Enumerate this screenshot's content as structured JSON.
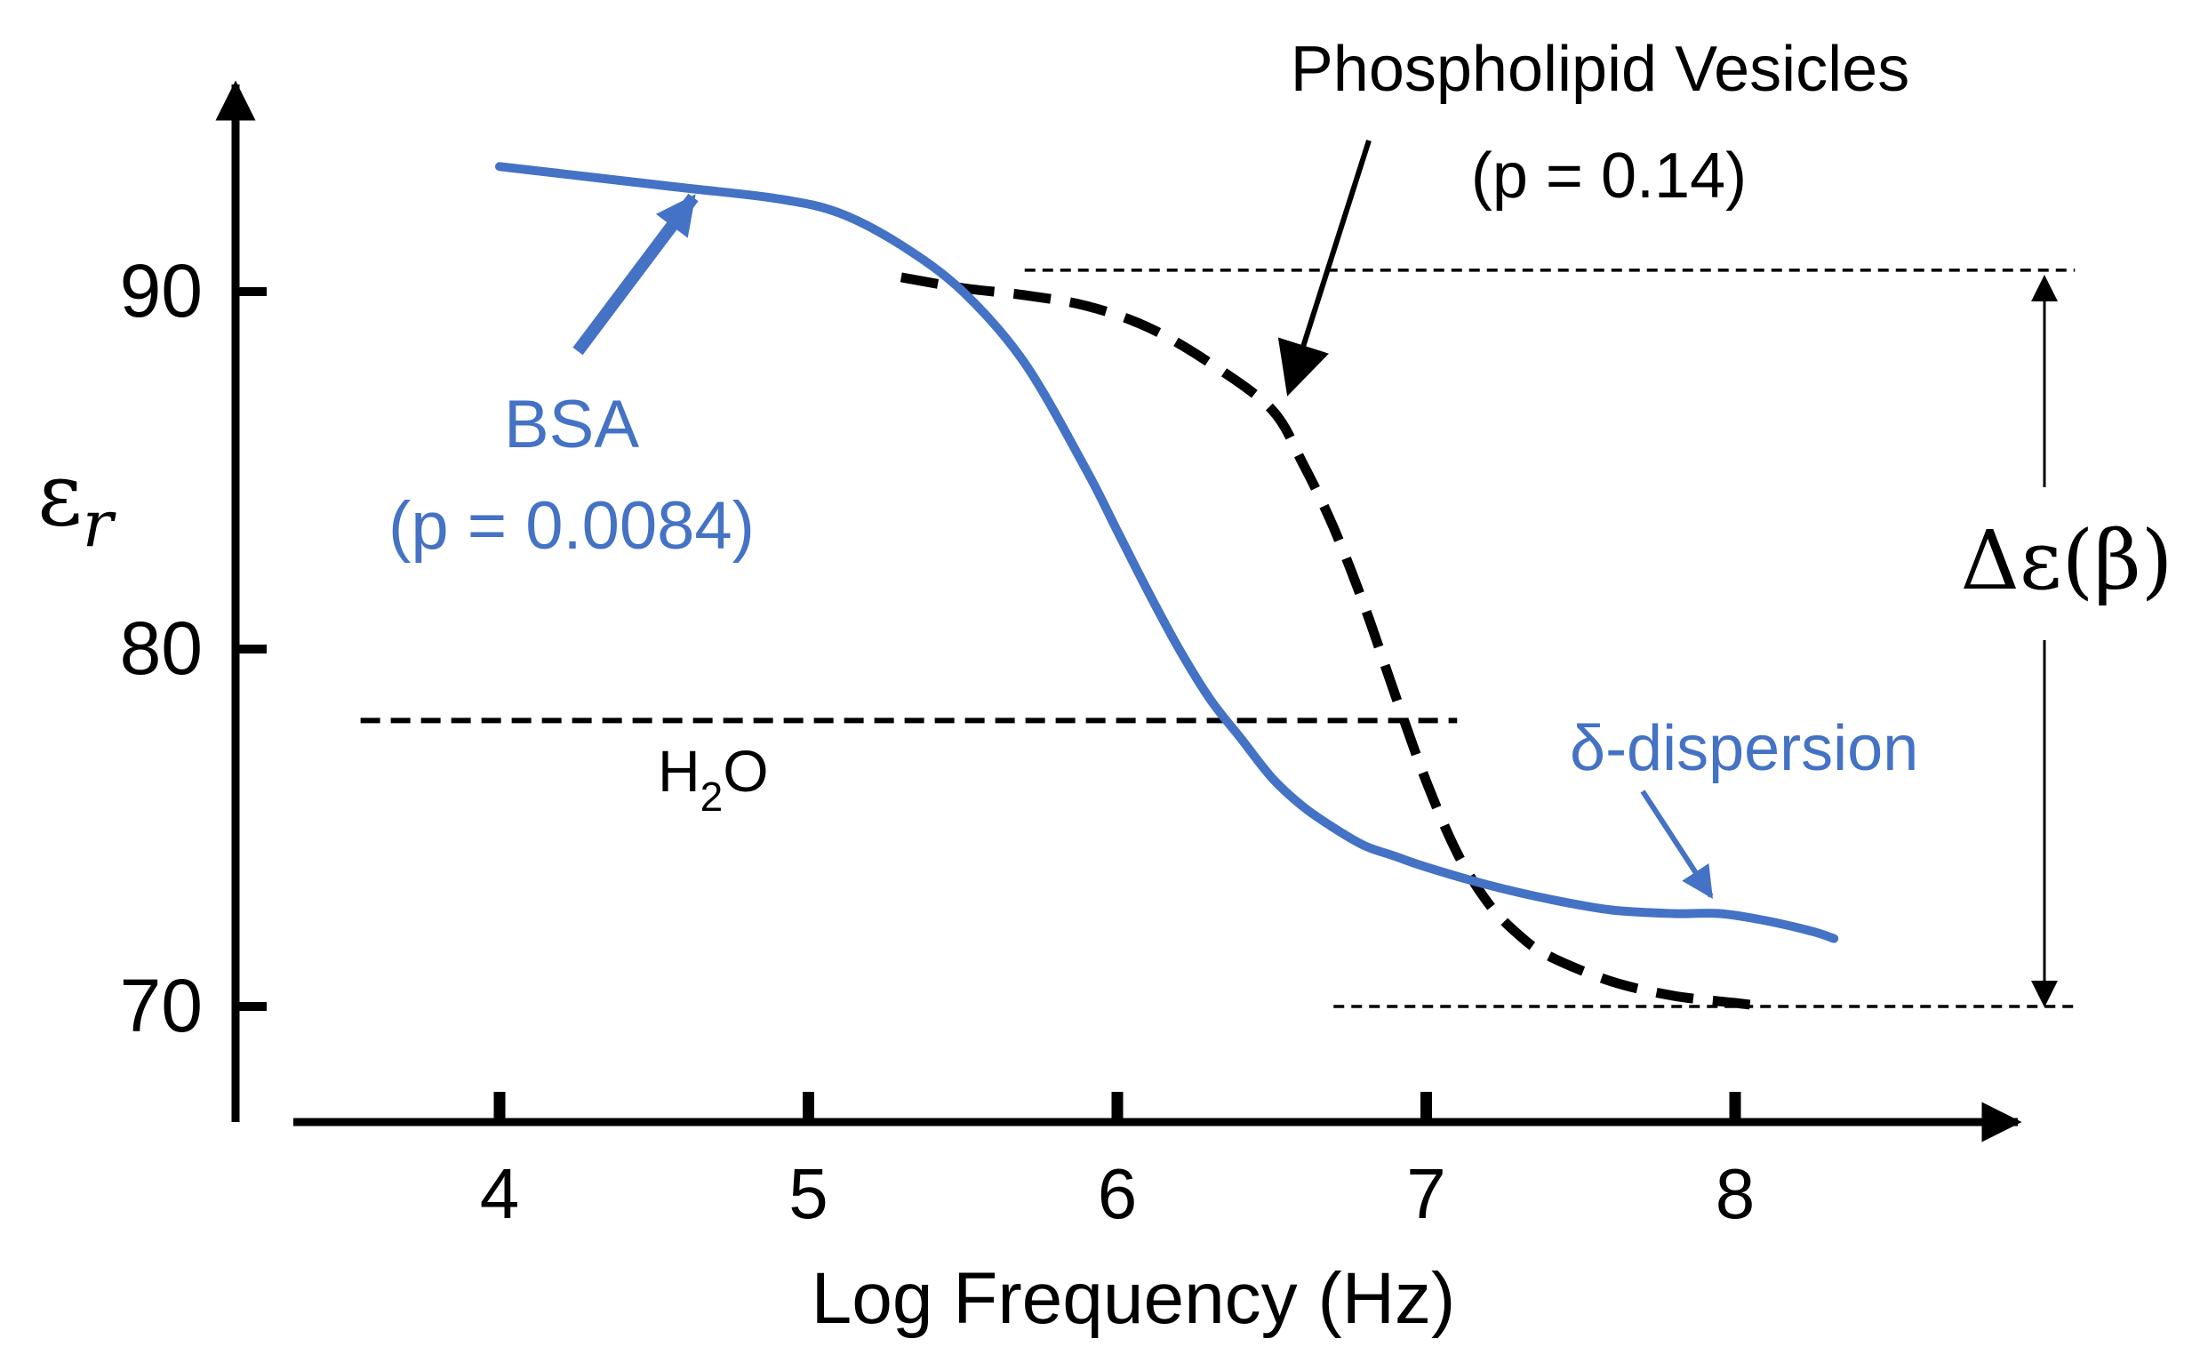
{
  "chart_data": {
    "type": "line",
    "xlabel": "Log Frequency (Hz)",
    "ylabel": "εr",
    "ylabel_main": "ε",
    "ylabel_sub": "r",
    "x_ticks": [
      "4",
      "5",
      "6",
      "7",
      "8"
    ],
    "y_ticks": [
      "70",
      "80",
      "90"
    ],
    "xlim": [
      3.1,
      9.3
    ],
    "ylim": [
      67,
      97
    ],
    "grid": false,
    "series": [
      {
        "name": "BSA",
        "color": "#4472C4",
        "style": "solid",
        "x": [
          4.0,
          4.3,
          4.6,
          4.9,
          5.1,
          5.3,
          5.5,
          5.7,
          5.9,
          6.0,
          6.1,
          6.2,
          6.3,
          6.4,
          6.5,
          6.6,
          6.7,
          6.8,
          6.9,
          7.0,
          7.2,
          7.4,
          7.6,
          7.8,
          7.95,
          8.1,
          8.25,
          8.32
        ],
        "y": [
          93.5,
          93.2,
          92.9,
          92.6,
          92.2,
          91.3,
          90.0,
          88.0,
          85.0,
          83.3,
          81.6,
          80.0,
          78.6,
          77.5,
          76.4,
          75.6,
          75.0,
          74.5,
          74.2,
          73.9,
          73.4,
          73.0,
          72.7,
          72.6,
          72.6,
          72.4,
          72.1,
          71.9
        ]
      },
      {
        "name": "Phospholipid Vesicles",
        "color": "#000000",
        "style": "dashed",
        "x": [
          5.3,
          5.5,
          5.7,
          5.9,
          6.1,
          6.3,
          6.5,
          6.6,
          6.7,
          6.8,
          6.9,
          7.0,
          7.1,
          7.2,
          7.3,
          7.4,
          7.6,
          7.8,
          8.0,
          8.1
        ],
        "y": [
          90.4,
          90.1,
          89.9,
          89.6,
          89.0,
          88.0,
          86.7,
          85.2,
          83.4,
          81.2,
          78.7,
          76.3,
          74.3,
          72.9,
          72.0,
          71.4,
          70.7,
          70.3,
          70.1,
          70.0
        ]
      }
    ],
    "reference_lines": [
      {
        "label": "H₂O",
        "y": 78,
        "x_range": [
          3.55,
          7.1
        ]
      },
      {
        "label": "",
        "y": 90.6,
        "x_range": [
          5.7,
          9.1
        ]
      },
      {
        "label": "",
        "y": 70,
        "x_range": [
          6.7,
          9.1
        ]
      }
    ],
    "annotations": {
      "bsa_label": "BSA",
      "bsa_p": "(p = 0.0084)",
      "pv_label": "Phospholipid Vesicles",
      "pv_p": "(p = 0.14)",
      "h2o": "H₂O",
      "delta_dispersion": "δ-dispersion",
      "delta_eps": "Δε(β)"
    }
  }
}
